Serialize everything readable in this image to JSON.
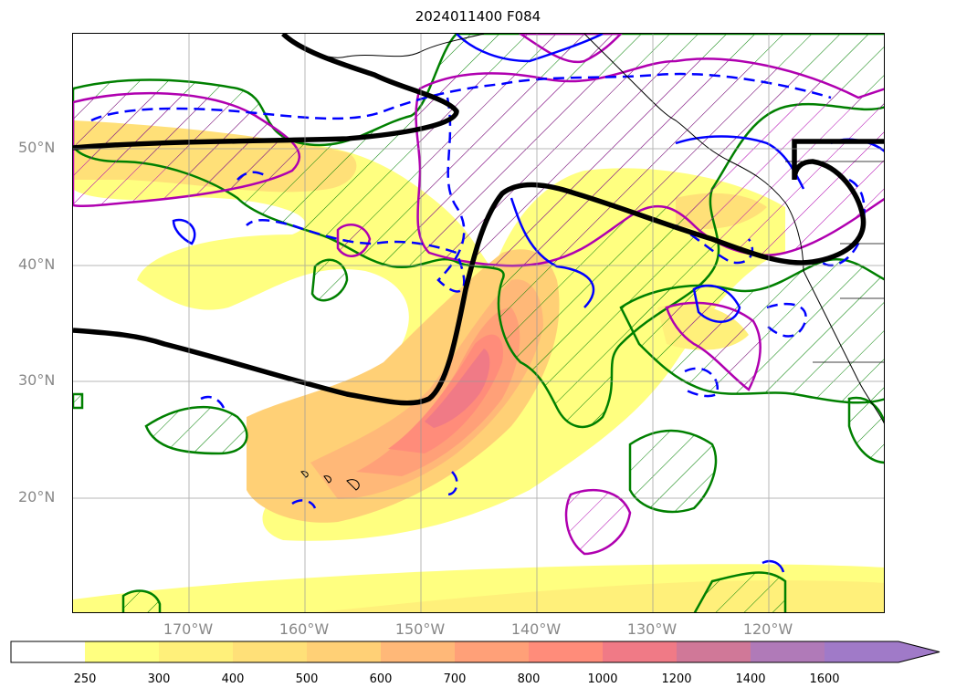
{
  "title": "2024011400 F084",
  "lat_labels": [
    "50°N",
    "40°N",
    "30°N",
    "20°N"
  ],
  "lon_labels": [
    "170°W",
    "160°W",
    "150°W",
    "140°W",
    "130°W",
    "120°W"
  ],
  "colorbar": {
    "labels": [
      "250",
      "300",
      "400",
      "500",
      "600",
      "700",
      "800",
      "1000",
      "1200",
      "1400",
      "1600"
    ],
    "colors": [
      "#ffff80",
      "#fff07a",
      "#ffe078",
      "#ffd076",
      "#ffb878",
      "#ffa078",
      "#ff8c7a",
      "#f07a86",
      "#d07898",
      "#b07ab8",
      "#a07ac8"
    ],
    "below_color": "#ffffff",
    "extend": "max"
  },
  "map": {
    "domain": "North Pacific",
    "lat_range": [
      10,
      60
    ],
    "lon_range": [
      -180,
      -110
    ],
    "gridlines": true,
    "contours": {
      "thick_line_color": "#000000",
      "hatched_regions_green": "#008000",
      "hatched_regions_magenta": "#b000b0",
      "dashed_blue": "#0000ff",
      "solid_blue": "#0000ff"
    }
  }
}
